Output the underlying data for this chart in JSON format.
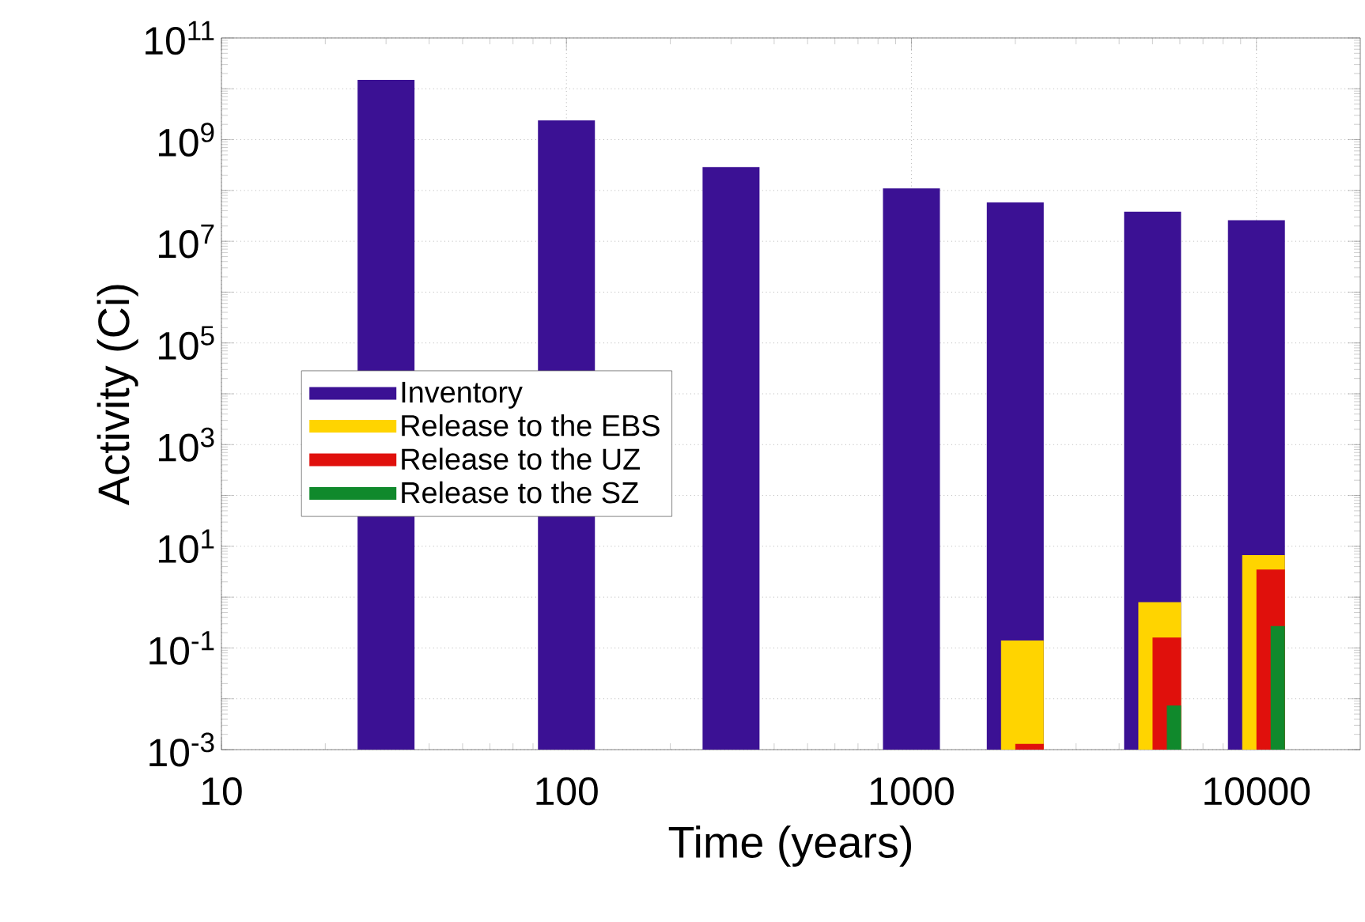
{
  "chart_data": {
    "type": "bar",
    "xlabel": "Time (years)",
    "ylabel": "Activity (Ci)",
    "log": "xy",
    "xlim": [
      10,
      20000
    ],
    "xticks": [
      10,
      100,
      1000,
      10000
    ],
    "ylim": [
      0.001,
      100000000000.0
    ],
    "yticks": [
      {
        "value": 0.001,
        "label": "10$^{-3}$"
      },
      {
        "value": 0.01,
        "label": null
      },
      {
        "value": 0.1,
        "label": "10$^{-1}$"
      },
      {
        "value": 1,
        "label": null
      },
      {
        "value": 10,
        "label": "10$^{1}$"
      },
      {
        "value": 100,
        "label": null
      },
      {
        "value": 1000,
        "label": "10$^{3}$"
      },
      {
        "value": 10000,
        "label": null
      },
      {
        "value": 100000,
        "label": "10$^{5}$"
      },
      {
        "value": 1000000,
        "label": null
      },
      {
        "value": 10000000,
        "label": "10$^{7}$"
      },
      {
        "value": 100000000,
        "label": null
      },
      {
        "value": 1000000000,
        "label": "10$^{9}$"
      },
      {
        "value": 10000000000,
        "label": null
      },
      {
        "value": 100000000000,
        "label": "10$^{11}$"
      }
    ],
    "grid": true,
    "legend": "left",
    "series": [
      {
        "name": "Inventory",
        "color": "#3b1194",
        "x": [
          30,
          100,
          300,
          1000,
          2000,
          5000,
          10000
        ],
        "values": [
          15000000000.0,
          2400000000.0,
          290000000.0,
          110000000.0,
          58000000.0,
          38000000.0,
          26000000.0
        ]
      },
      {
        "name": "Release to the EBS",
        "color": "#ffd400",
        "x": [
          2000,
          5000,
          10000
        ],
        "values": [
          0.14,
          0.8,
          6.7
        ]
      },
      {
        "name": "Release to the UZ",
        "color": "#e0100c",
        "x": [
          2000,
          5000,
          10000
        ],
        "values": [
          0.0013,
          0.16,
          3.5
        ]
      },
      {
        "name": "Release to the SZ",
        "color": "#10892c",
        "x": [
          5000,
          10000
        ],
        "values": [
          0.0074,
          0.27
        ]
      }
    ]
  }
}
